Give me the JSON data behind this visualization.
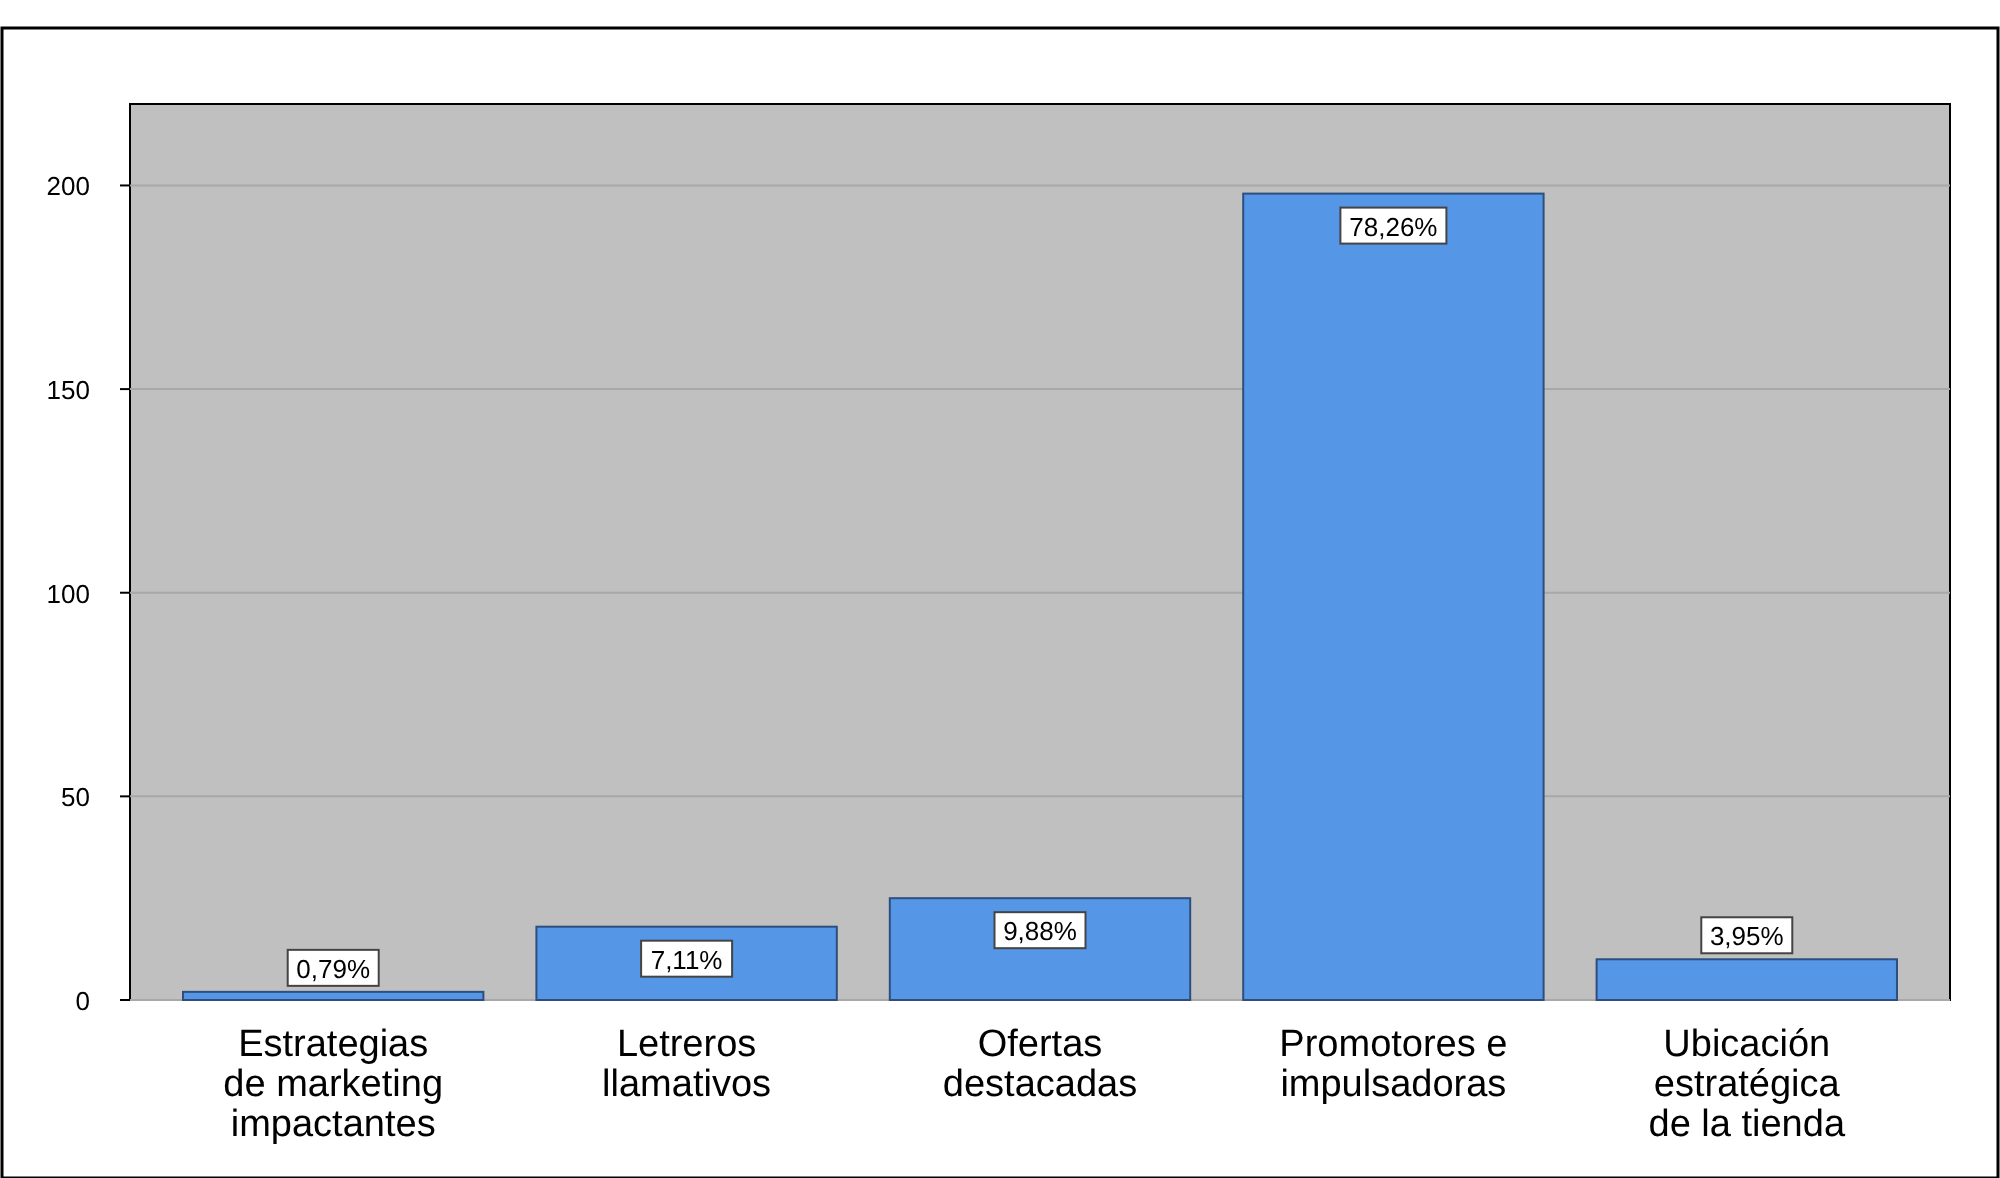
{
  "chart_data": {
    "type": "bar",
    "categories": [
      "Estrategias de marketing impactantes",
      "Letreros llamativos",
      "Ofertas destacadas",
      "Promotores e impulsadoras",
      "Ubicación estratégica de la tienda"
    ],
    "values": [
      2,
      18,
      25,
      198,
      10
    ],
    "annotations": [
      {
        "text": "0,79%",
        "x": "Estrategias de marketing impactantes",
        "y": 2
      },
      {
        "text": "7,11%",
        "x": "Letreros llamativos",
        "y": 18
      },
      {
        "text": "9,88%",
        "x": "Ofertas destacadas",
        "y": 25
      },
      {
        "text": "78,26%",
        "x": "Promotores e impulsadoras",
        "y": 198
      },
      {
        "text": "3,95%",
        "x": "Ubicación estratégica de la tienda",
        "y": 10
      }
    ],
    "color": "#5596e6",
    "ylim": [
      0,
      220
    ],
    "yticks": [
      0,
      50,
      100,
      150,
      200
    ],
    "grid": "y"
  }
}
